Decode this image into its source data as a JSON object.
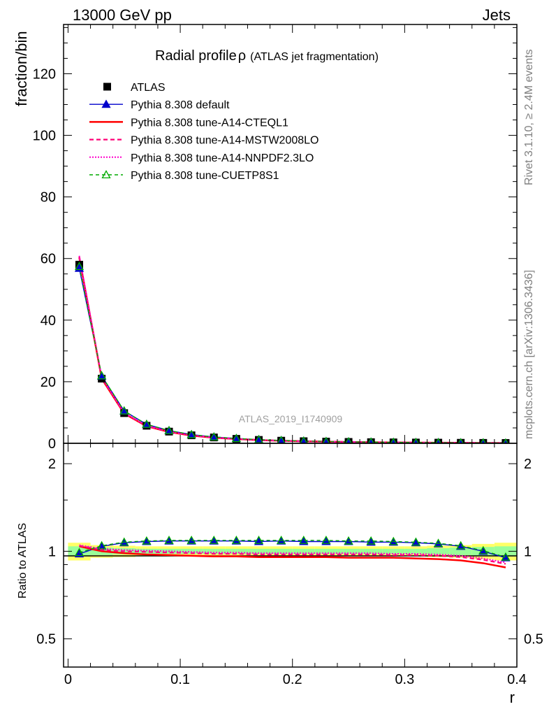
{
  "header": {
    "left": "13000 GeV pp",
    "right": "Jets"
  },
  "side_labels": {
    "rivet": "Rivet 3.1.10, ≥ 2.4M events",
    "mcplots": "mcplots.cern.ch [arXiv:1306.3436]"
  },
  "colors": {
    "atlas": "#000000",
    "default": "#0000cc",
    "cteql1": "#ff0000",
    "mstw": "#ff0077",
    "nnpdf": "#ff00cc",
    "cuetp8s1": "#00aa00",
    "band_yellow": "#ffff66",
    "band_green": "#99ff99"
  },
  "chart_data": {
    "type": "line",
    "title_main": "Radial profile",
    "title_symbol": "ρ",
    "title_sub": "(ATLAS jet fragmentation)",
    "ylabel": "fraction/bin",
    "ratio_ylabel": "Ratio to ATLAS",
    "xlabel": "r",
    "watermark": "ATLAS_2019_I1740909",
    "xlim": [
      -0.004,
      0.4
    ],
    "ylim": [
      0,
      136
    ],
    "ratio_ylim": [
      0.4,
      2.35
    ],
    "x_ticks": [
      "0",
      "0.1",
      "0.2",
      "0.3",
      "0.4"
    ],
    "y_ticks": [
      "0",
      "20",
      "40",
      "60",
      "80",
      "100",
      "120"
    ],
    "ratio_ticks": [
      "0.5",
      "1",
      "2"
    ],
    "x": [
      0.01,
      0.03,
      0.05,
      0.07,
      0.09,
      0.11,
      0.13,
      0.15,
      0.17,
      0.19,
      0.21,
      0.23,
      0.25,
      0.27,
      0.29,
      0.31,
      0.33,
      0.35,
      0.37,
      0.39
    ],
    "data": {
      "name": "ATLAS",
      "values": [
        58.0,
        21.0,
        9.8,
        5.7,
        3.8,
        2.6,
        1.9,
        1.45,
        1.1,
        0.85,
        0.68,
        0.55,
        0.45,
        0.37,
        0.3,
        0.25,
        0.21,
        0.17,
        0.14,
        0.11
      ],
      "band_yellow": [
        0.07,
        0.05,
        0.045,
        0.04,
        0.04,
        0.04,
        0.04,
        0.04,
        0.04,
        0.04,
        0.04,
        0.04,
        0.04,
        0.04,
        0.04,
        0.04,
        0.045,
        0.05,
        0.06,
        0.07
      ],
      "band_green": [
        0.04,
        0.03,
        0.025,
        0.02,
        0.02,
        0.02,
        0.02,
        0.02,
        0.02,
        0.02,
        0.02,
        0.02,
        0.02,
        0.02,
        0.02,
        0.02,
        0.025,
        0.03,
        0.035,
        0.04
      ]
    },
    "series": [
      {
        "name": "Pythia 8.308 default",
        "key": "default",
        "ratio": [
          0.98,
          1.04,
          1.07,
          1.08,
          1.085,
          1.085,
          1.085,
          1.085,
          1.08,
          1.085,
          1.08,
          1.08,
          1.08,
          1.075,
          1.075,
          1.07,
          1.06,
          1.04,
          1.0,
          0.95
        ]
      },
      {
        "name": "Pythia 8.308 tune-A14-CTEQL1",
        "key": "cteql1",
        "ratio": [
          1.04,
          1.0,
          0.985,
          0.975,
          0.97,
          0.965,
          0.96,
          0.96,
          0.955,
          0.955,
          0.955,
          0.955,
          0.95,
          0.95,
          0.95,
          0.945,
          0.94,
          0.93,
          0.91,
          0.88
        ]
      },
      {
        "name": "Pythia 8.308 tune-A14-MSTW2008LO",
        "key": "mstw",
        "ratio": [
          1.045,
          1.01,
          1.0,
          0.995,
          0.99,
          0.985,
          0.98,
          0.98,
          0.975,
          0.975,
          0.975,
          0.975,
          0.975,
          0.975,
          0.97,
          0.97,
          0.965,
          0.955,
          0.935,
          0.905
        ]
      },
      {
        "name": "Pythia 8.308 tune-A14-NNPDF2.3LO",
        "key": "nnpdf",
        "ratio": [
          1.05,
          1.02,
          1.01,
          1.005,
          1.0,
          0.995,
          0.99,
          0.99,
          0.985,
          0.985,
          0.985,
          0.985,
          0.985,
          0.985,
          0.98,
          0.98,
          0.975,
          0.965,
          0.945,
          0.915
        ]
      },
      {
        "name": "Pythia 8.308 tune-CUETP8S1",
        "key": "cuetp8s1",
        "ratio": [
          0.99,
          1.045,
          1.075,
          1.085,
          1.09,
          1.09,
          1.09,
          1.09,
          1.09,
          1.09,
          1.09,
          1.09,
          1.085,
          1.085,
          1.08,
          1.075,
          1.065,
          1.045,
          1.005,
          0.955
        ]
      }
    ]
  }
}
